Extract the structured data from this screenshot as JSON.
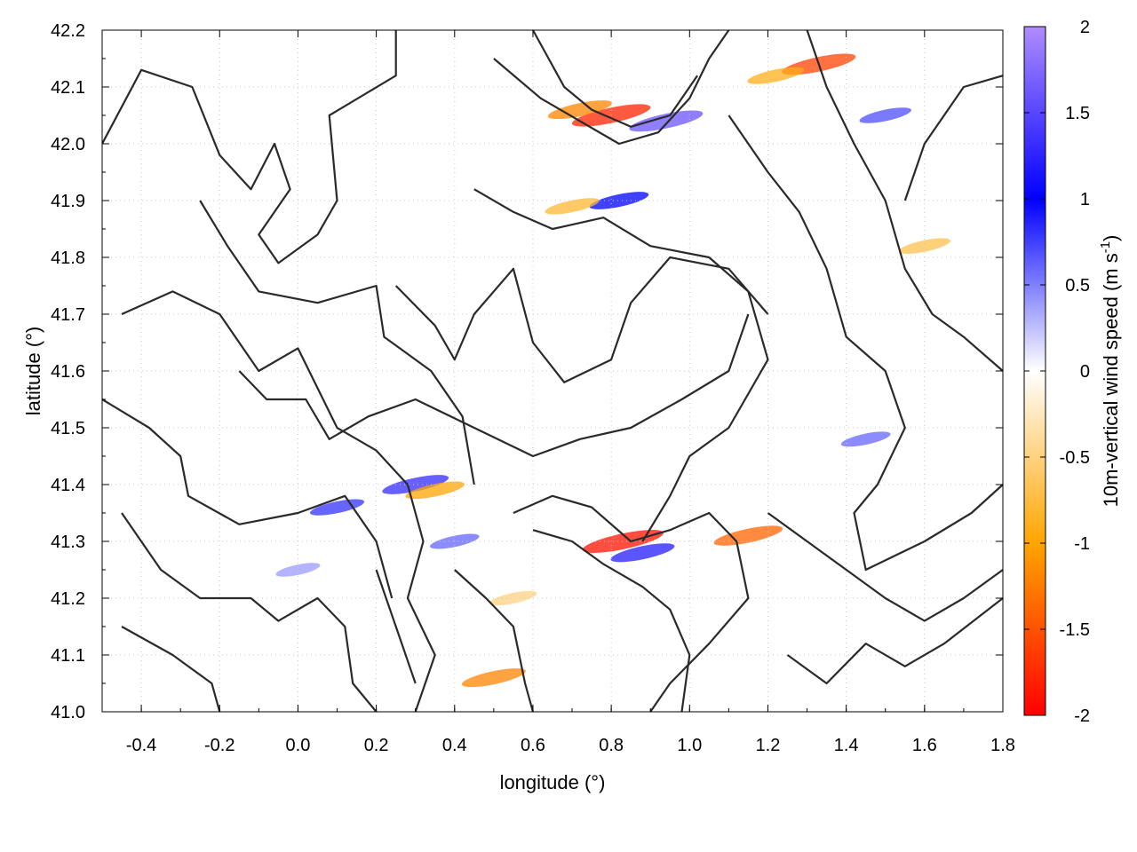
{
  "chart_data": {
    "type": "heatmap",
    "xlabel": "longitude (°)",
    "ylabel": "latitude (°)",
    "colorbar_label": "10m-vertical wind speed (m s",
    "colorbar_label_exponent": "-1",
    "colorbar_label_close": ")",
    "xlim": [
      -0.5,
      1.8
    ],
    "ylim": [
      41.0,
      42.2
    ],
    "x_ticks": [
      -0.4,
      -0.2,
      0.0,
      0.2,
      0.4,
      0.6,
      0.8,
      1.0,
      1.2,
      1.4,
      1.6,
      1.8
    ],
    "x_tick_labels": [
      "-0.4",
      "-0.2",
      "0.0",
      "0.2",
      "0.4",
      "0.6",
      "0.8",
      "1.0",
      "1.2",
      "1.4",
      "1.6",
      "1.8"
    ],
    "y_ticks": [
      41.0,
      41.1,
      41.2,
      41.3,
      41.4,
      41.5,
      41.6,
      41.7,
      41.8,
      41.9,
      42.0,
      42.1,
      42.2
    ],
    "y_tick_labels": [
      "41.0",
      "41.1",
      "41.2",
      "41.3",
      "41.4",
      "41.5",
      "41.6",
      "41.7",
      "41.8",
      "41.9",
      "42.0",
      "42.1",
      "42.2"
    ],
    "colorbar": {
      "min": -2,
      "max": 2,
      "ticks": [
        2,
        1.5,
        1,
        0.5,
        0,
        -0.5,
        -1,
        -1.5,
        -2
      ],
      "tick_labels": [
        "2",
        "1.5",
        "1",
        "0.5",
        "0",
        "-0.5",
        "-1",
        "-1.5",
        "-2"
      ],
      "stops": [
        {
          "value": 2,
          "color": "#b08cff"
        },
        {
          "value": 1,
          "color": "#0000ff"
        },
        {
          "value": 0,
          "color": "#ffffff"
        },
        {
          "value": -1,
          "color": "#ffa500"
        },
        {
          "value": -2,
          "color": "#ff0000"
        }
      ]
    },
    "grid": true,
    "field_features": [
      {
        "lon": 0.8,
        "lat": 42.05,
        "value": -1.8
      },
      {
        "lon": 0.94,
        "lat": 42.04,
        "value": 1.6
      },
      {
        "lon": 0.72,
        "lat": 42.06,
        "value": -1.2
      },
      {
        "lon": 1.33,
        "lat": 42.14,
        "value": -1.6
      },
      {
        "lon": 1.22,
        "lat": 42.12,
        "value": -0.9
      },
      {
        "lon": 0.82,
        "lat": 41.9,
        "value": 1.0
      },
      {
        "lon": 0.7,
        "lat": 41.89,
        "value": -0.8
      },
      {
        "lon": 0.83,
        "lat": 41.3,
        "value": -1.9
      },
      {
        "lon": 0.88,
        "lat": 41.28,
        "value": 1.2
      },
      {
        "lon": 0.3,
        "lat": 41.4,
        "value": 1.3
      },
      {
        "lon": 0.35,
        "lat": 41.39,
        "value": -1.0
      },
      {
        "lon": 0.1,
        "lat": 41.36,
        "value": 0.8
      },
      {
        "lon": 0.5,
        "lat": 41.06,
        "value": -1.2
      },
      {
        "lon": 1.15,
        "lat": 41.31,
        "value": -1.4
      },
      {
        "lon": 1.45,
        "lat": 41.48,
        "value": 0.6
      },
      {
        "lon": 1.6,
        "lat": 41.82,
        "value": -0.7
      },
      {
        "lon": 1.5,
        "lat": 42.05,
        "value": 0.7
      },
      {
        "lon": 0.4,
        "lat": 41.3,
        "value": 0.6
      },
      {
        "lon": 0.0,
        "lat": 41.25,
        "value": 0.4
      },
      {
        "lon": 0.55,
        "lat": 41.2,
        "value": -0.5
      }
    ],
    "contour_lines": [
      [
        [
          -0.5,
          42.0
        ],
        [
          -0.4,
          42.13
        ],
        [
          -0.27,
          42.1
        ],
        [
          -0.2,
          41.98
        ],
        [
          -0.12,
          41.92
        ],
        [
          -0.06,
          42.0
        ],
        [
          -0.02,
          41.92
        ],
        [
          -0.1,
          41.84
        ],
        [
          -0.05,
          41.79
        ],
        [
          0.05,
          41.84
        ],
        [
          0.1,
          41.9
        ],
        [
          0.08,
          42.05
        ],
        [
          0.25,
          42.12
        ],
        [
          0.25,
          42.2
        ]
      ],
      [
        [
          -0.25,
          41.9
        ],
        [
          -0.18,
          41.82
        ],
        [
          -0.1,
          41.74
        ],
        [
          0.05,
          41.72
        ],
        [
          0.2,
          41.75
        ],
        [
          0.22,
          41.66
        ],
        [
          0.34,
          41.6
        ],
        [
          0.42,
          41.52
        ],
        [
          0.45,
          41.4
        ]
      ],
      [
        [
          -0.45,
          41.7
        ],
        [
          -0.32,
          41.74
        ],
        [
          -0.2,
          41.7
        ],
        [
          -0.1,
          41.6
        ],
        [
          0.0,
          41.64
        ],
        [
          0.1,
          41.5
        ],
        [
          0.2,
          41.46
        ],
        [
          0.28,
          41.4
        ],
        [
          0.32,
          41.3
        ],
        [
          0.28,
          41.2
        ],
        [
          0.35,
          41.1
        ],
        [
          0.3,
          41.0
        ]
      ],
      [
        [
          -0.5,
          41.55
        ],
        [
          -0.38,
          41.5
        ],
        [
          -0.3,
          41.45
        ],
        [
          -0.28,
          41.38
        ],
        [
          -0.15,
          41.33
        ],
        [
          0.0,
          41.35
        ],
        [
          0.12,
          41.38
        ],
        [
          0.2,
          41.3
        ],
        [
          0.24,
          41.2
        ]
      ],
      [
        [
          -0.45,
          41.35
        ],
        [
          -0.35,
          41.25
        ],
        [
          -0.25,
          41.2
        ],
        [
          -0.12,
          41.2
        ],
        [
          -0.05,
          41.16
        ],
        [
          0.05,
          41.2
        ],
        [
          0.12,
          41.15
        ],
        [
          0.14,
          41.05
        ],
        [
          0.2,
          41.0
        ]
      ],
      [
        [
          -0.45,
          41.15
        ],
        [
          -0.32,
          41.1
        ],
        [
          -0.22,
          41.05
        ],
        [
          -0.2,
          41.0
        ]
      ],
      [
        [
          0.25,
          41.75
        ],
        [
          0.35,
          41.68
        ],
        [
          0.4,
          41.62
        ],
        [
          0.45,
          41.7
        ],
        [
          0.55,
          41.78
        ],
        [
          0.6,
          41.65
        ],
        [
          0.68,
          41.58
        ],
        [
          0.8,
          41.62
        ],
        [
          0.85,
          41.72
        ],
        [
          0.95,
          41.8
        ],
        [
          1.1,
          41.78
        ],
        [
          1.2,
          41.7
        ]
      ],
      [
        [
          0.45,
          41.92
        ],
        [
          0.55,
          41.88
        ],
        [
          0.65,
          41.85
        ],
        [
          0.78,
          41.87
        ],
        [
          0.9,
          41.82
        ],
        [
          1.05,
          41.8
        ],
        [
          1.15,
          41.74
        ],
        [
          1.2,
          41.62
        ],
        [
          1.1,
          41.5
        ],
        [
          1.0,
          41.45
        ],
        [
          0.95,
          41.38
        ],
        [
          0.88,
          41.3
        ]
      ],
      [
        [
          0.5,
          42.15
        ],
        [
          0.62,
          42.08
        ],
        [
          0.72,
          42.04
        ],
        [
          0.82,
          42.0
        ],
        [
          0.92,
          42.02
        ],
        [
          1.0,
          42.08
        ],
        [
          1.05,
          42.15
        ],
        [
          1.1,
          42.2
        ]
      ],
      [
        [
          0.6,
          42.2
        ],
        [
          0.68,
          42.1
        ],
        [
          0.75,
          42.06
        ],
        [
          0.85,
          42.03
        ],
        [
          0.95,
          42.05
        ],
        [
          1.02,
          42.12
        ]
      ],
      [
        [
          1.1,
          42.05
        ],
        [
          1.2,
          41.95
        ],
        [
          1.28,
          41.88
        ],
        [
          1.35,
          41.78
        ],
        [
          1.4,
          41.66
        ],
        [
          1.5,
          41.6
        ],
        [
          1.55,
          41.5
        ],
        [
          1.48,
          41.4
        ],
        [
          1.42,
          41.35
        ],
        [
          1.45,
          41.25
        ],
        [
          1.6,
          41.3
        ],
        [
          1.72,
          41.35
        ],
        [
          1.8,
          41.4
        ]
      ],
      [
        [
          1.3,
          42.2
        ],
        [
          1.35,
          42.1
        ],
        [
          1.42,
          42.0
        ],
        [
          1.5,
          41.9
        ],
        [
          1.55,
          41.78
        ],
        [
          1.62,
          41.7
        ],
        [
          1.7,
          41.66
        ],
        [
          1.8,
          41.6
        ]
      ],
      [
        [
          0.55,
          41.35
        ],
        [
          0.65,
          41.38
        ],
        [
          0.75,
          41.36
        ],
        [
          0.85,
          41.3
        ],
        [
          0.95,
          41.32
        ],
        [
          1.05,
          41.35
        ],
        [
          1.12,
          41.3
        ],
        [
          1.15,
          41.2
        ],
        [
          1.05,
          41.12
        ],
        [
          0.95,
          41.05
        ],
        [
          0.9,
          41.0
        ]
      ],
      [
        [
          0.6,
          41.32
        ],
        [
          0.7,
          41.3
        ],
        [
          0.78,
          41.26
        ],
        [
          0.88,
          41.22
        ],
        [
          0.95,
          41.18
        ],
        [
          1.0,
          41.1
        ],
        [
          0.98,
          41.0
        ]
      ],
      [
        [
          1.2,
          41.35
        ],
        [
          1.3,
          41.3
        ],
        [
          1.4,
          41.25
        ],
        [
          1.5,
          41.2
        ],
        [
          1.6,
          41.16
        ],
        [
          1.7,
          41.2
        ],
        [
          1.8,
          41.25
        ]
      ],
      [
        [
          0.4,
          41.25
        ],
        [
          0.48,
          41.2
        ],
        [
          0.55,
          41.15
        ],
        [
          0.58,
          41.05
        ],
        [
          0.6,
          41.0
        ]
      ],
      [
        [
          0.2,
          41.25
        ],
        [
          0.25,
          41.15
        ],
        [
          0.3,
          41.05
        ]
      ],
      [
        [
          1.55,
          41.9
        ],
        [
          1.6,
          42.0
        ],
        [
          1.7,
          42.1
        ],
        [
          1.8,
          42.12
        ]
      ],
      [
        [
          1.25,
          41.1
        ],
        [
          1.35,
          41.05
        ],
        [
          1.45,
          41.12
        ],
        [
          1.55,
          41.08
        ],
        [
          1.65,
          41.12
        ],
        [
          1.8,
          41.2
        ]
      ],
      [
        [
          -0.15,
          41.6
        ],
        [
          -0.08,
          41.55
        ],
        [
          0.02,
          41.55
        ],
        [
          0.08,
          41.48
        ],
        [
          0.18,
          41.52
        ],
        [
          0.3,
          41.55
        ],
        [
          0.45,
          41.5
        ],
        [
          0.6,
          41.45
        ],
        [
          0.72,
          41.48
        ],
        [
          0.85,
          41.5
        ],
        [
          0.98,
          41.55
        ],
        [
          1.1,
          41.6
        ],
        [
          1.15,
          41.7
        ]
      ]
    ]
  }
}
